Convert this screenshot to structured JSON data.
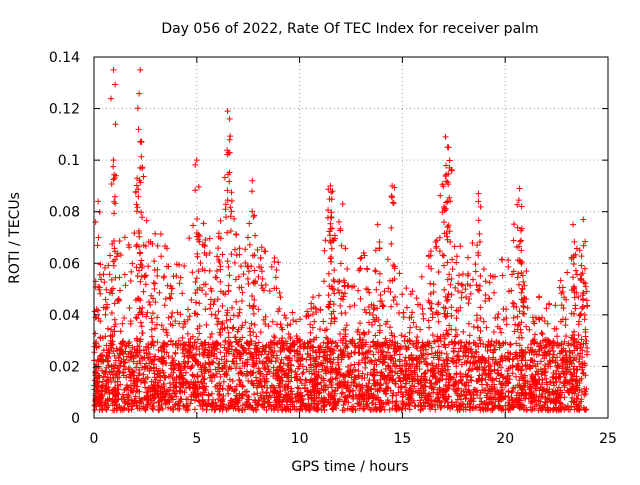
{
  "chart_data": {
    "type": "scatter",
    "title": "Day 056 of 2022, Rate Of TEC Index for receiver palm",
    "xlabel": "GPS time / hours",
    "ylabel": "ROTI / TECUs",
    "xlim": [
      0,
      25
    ],
    "ylim": [
      0,
      0.14
    ],
    "x_ticks": [
      0,
      5,
      10,
      15,
      20,
      25
    ],
    "x_tick_labels": [
      "0",
      "5",
      "10",
      "15",
      "20",
      "25"
    ],
    "y_ticks": [
      0,
      0.02,
      0.04,
      0.06,
      0.08,
      0.1,
      0.12,
      0.14
    ],
    "y_tick_labels": [
      "0",
      "0.02",
      "0.04",
      "0.06",
      "0.08",
      "0.1",
      "0.12",
      "0.14"
    ],
    "grid": true,
    "marker": "+",
    "series": [
      {
        "name": "ROTI",
        "color": "#ff0000",
        "x_range": [
          0,
          24
        ],
        "baseline_range": [
          0.003,
          0.03
        ],
        "envelope": [
          {
            "x": 0.0,
            "y": 0.05
          },
          {
            "x": 0.5,
            "y": 0.06
          },
          {
            "x": 1.0,
            "y": 0.075
          },
          {
            "x": 1.5,
            "y": 0.07
          },
          {
            "x": 2.0,
            "y": 0.09
          },
          {
            "x": 2.5,
            "y": 0.08
          },
          {
            "x": 3.0,
            "y": 0.075
          },
          {
            "x": 3.5,
            "y": 0.07
          },
          {
            "x": 4.0,
            "y": 0.06
          },
          {
            "x": 4.5,
            "y": 0.065
          },
          {
            "x": 5.0,
            "y": 0.095
          },
          {
            "x": 5.5,
            "y": 0.075
          },
          {
            "x": 6.0,
            "y": 0.065
          },
          {
            "x": 6.5,
            "y": 0.11
          },
          {
            "x": 7.0,
            "y": 0.065
          },
          {
            "x": 7.5,
            "y": 0.08
          },
          {
            "x": 8.0,
            "y": 0.075
          },
          {
            "x": 8.5,
            "y": 0.065
          },
          {
            "x": 9.0,
            "y": 0.06
          },
          {
            "x": 9.5,
            "y": 0.045
          },
          {
            "x": 10.0,
            "y": 0.04
          },
          {
            "x": 10.5,
            "y": 0.045
          },
          {
            "x": 11.0,
            "y": 0.06
          },
          {
            "x": 11.5,
            "y": 0.085
          },
          {
            "x": 12.0,
            "y": 0.075
          },
          {
            "x": 12.5,
            "y": 0.06
          },
          {
            "x": 13.0,
            "y": 0.07
          },
          {
            "x": 13.5,
            "y": 0.05
          },
          {
            "x": 14.0,
            "y": 0.05
          },
          {
            "x": 14.5,
            "y": 0.07
          },
          {
            "x": 15.0,
            "y": 0.055
          },
          {
            "x": 15.5,
            "y": 0.05
          },
          {
            "x": 16.0,
            "y": 0.065
          },
          {
            "x": 16.5,
            "y": 0.07
          },
          {
            "x": 17.0,
            "y": 0.1
          },
          {
            "x": 17.5,
            "y": 0.07
          },
          {
            "x": 18.0,
            "y": 0.065
          },
          {
            "x": 18.5,
            "y": 0.08
          },
          {
            "x": 19.0,
            "y": 0.06
          },
          {
            "x": 19.5,
            "y": 0.055
          },
          {
            "x": 20.0,
            "y": 0.065
          },
          {
            "x": 20.5,
            "y": 0.08
          },
          {
            "x": 21.0,
            "y": 0.06
          },
          {
            "x": 21.5,
            "y": 0.05
          },
          {
            "x": 22.0,
            "y": 0.045
          },
          {
            "x": 22.5,
            "y": 0.05
          },
          {
            "x": 23.0,
            "y": 0.06
          },
          {
            "x": 23.5,
            "y": 0.07
          },
          {
            "x": 24.0,
            "y": 0.06
          }
        ],
        "peaks": [
          {
            "x": 0.2,
            "y": 0.084
          },
          {
            "x": 0.95,
            "y": 0.135
          },
          {
            "x": 2.25,
            "y": 0.135
          },
          {
            "x": 2.3,
            "y": 0.107
          },
          {
            "x": 0.95,
            "y": 0.1
          },
          {
            "x": 2.1,
            "y": 0.093
          },
          {
            "x": 5.0,
            "y": 0.1
          },
          {
            "x": 6.5,
            "y": 0.119
          },
          {
            "x": 6.6,
            "y": 0.116
          },
          {
            "x": 7.7,
            "y": 0.092
          },
          {
            "x": 11.5,
            "y": 0.09
          },
          {
            "x": 11.6,
            "y": 0.088
          },
          {
            "x": 12.1,
            "y": 0.083
          },
          {
            "x": 13.8,
            "y": 0.075
          },
          {
            "x": 14.5,
            "y": 0.09
          },
          {
            "x": 17.1,
            "y": 0.109
          },
          {
            "x": 17.2,
            "y": 0.105
          },
          {
            "x": 17.3,
            "y": 0.097
          },
          {
            "x": 18.7,
            "y": 0.087
          },
          {
            "x": 20.7,
            "y": 0.089
          },
          {
            "x": 20.8,
            "y": 0.082
          },
          {
            "x": 23.3,
            "y": 0.075
          },
          {
            "x": 23.8,
            "y": 0.077
          }
        ]
      }
    ]
  }
}
